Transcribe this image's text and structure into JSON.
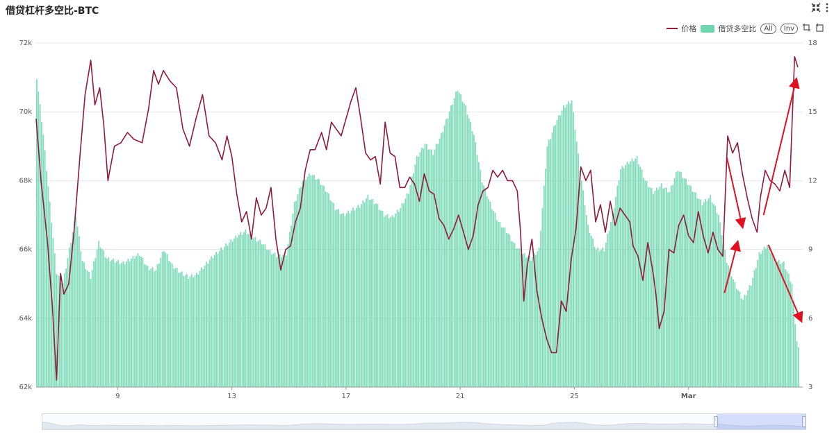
{
  "header": {
    "title": "借贷杠杆多空比-BTC"
  },
  "toolbar": {
    "fullscreen_icon": "collapse-arrows-icon",
    "more_icon": "vertical-dots-icon"
  },
  "legend": {
    "price_label": "价格",
    "ratio_label": "借贷多空比",
    "all_label": "All",
    "inv_label": "Inv",
    "price_color": "#8e1a3c",
    "ratio_color": "#6fd6b1"
  },
  "chart_data": {
    "type": "bar",
    "left_axis": {
      "min": 62000,
      "max": 72000,
      "ticks": [
        "62k",
        "64k",
        "66k",
        "68k",
        "70k",
        "72k"
      ]
    },
    "right_axis": {
      "min": 3,
      "max": 18,
      "ticks": [
        "3",
        "6",
        "9",
        "12",
        "15",
        "18"
      ]
    },
    "x_ticks": [
      "9",
      "13",
      "17",
      "21",
      "25",
      "Mar"
    ],
    "series": [
      {
        "name": "价格",
        "type": "line",
        "axis": "left",
        "color": "#8e1a3c",
        "points": [
          [
            0,
            69800
          ],
          [
            0.3,
            68000
          ],
          [
            0.7,
            66200
          ],
          [
            1.0,
            64300
          ],
          [
            1.25,
            62200
          ],
          [
            1.5,
            65300
          ],
          [
            1.7,
            64700
          ],
          [
            2.0,
            65000
          ],
          [
            2.3,
            66400
          ],
          [
            2.7,
            68800
          ],
          [
            3.0,
            70500
          ],
          [
            3.35,
            71500
          ],
          [
            3.6,
            70200
          ],
          [
            3.9,
            70700
          ],
          [
            4.15,
            69600
          ],
          [
            4.4,
            68000
          ],
          [
            4.8,
            69000
          ],
          [
            5.2,
            69100
          ],
          [
            5.6,
            69400
          ],
          [
            6.0,
            69200
          ],
          [
            6.5,
            69100
          ],
          [
            6.9,
            70100
          ],
          [
            7.2,
            71200
          ],
          [
            7.5,
            70800
          ],
          [
            7.8,
            71200
          ],
          [
            8.2,
            70900
          ],
          [
            8.6,
            70700
          ],
          [
            9.0,
            69500
          ],
          [
            9.4,
            69000
          ],
          [
            9.8,
            69800
          ],
          [
            10.2,
            70500
          ],
          [
            10.6,
            69300
          ],
          [
            11.0,
            69100
          ],
          [
            11.4,
            68600
          ],
          [
            11.7,
            69300
          ],
          [
            12.0,
            68700
          ],
          [
            12.3,
            67600
          ],
          [
            12.6,
            66800
          ],
          [
            12.9,
            67100
          ],
          [
            13.2,
            66300
          ],
          [
            13.5,
            67500
          ],
          [
            13.8,
            67000
          ],
          [
            14.1,
            67200
          ],
          [
            14.4,
            67800
          ],
          [
            14.7,
            66300
          ],
          [
            15.0,
            65400
          ],
          [
            15.3,
            66000
          ],
          [
            15.6,
            66100
          ],
          [
            15.9,
            66800
          ],
          [
            16.2,
            67200
          ],
          [
            16.5,
            68300
          ],
          [
            16.8,
            68900
          ],
          [
            17.1,
            68900
          ],
          [
            17.5,
            69400
          ],
          [
            17.8,
            68900
          ],
          [
            18.1,
            69700
          ],
          [
            18.4,
            69500
          ],
          [
            18.7,
            69300
          ],
          [
            19.0,
            69800
          ],
          [
            19.3,
            70300
          ],
          [
            19.6,
            70700
          ],
          [
            19.9,
            69800
          ],
          [
            20.2,
            68800
          ],
          [
            20.5,
            68600
          ],
          [
            20.8,
            68700
          ],
          [
            21.1,
            67900
          ],
          [
            21.4,
            69700
          ],
          [
            21.7,
            68800
          ],
          [
            22.0,
            68700
          ],
          [
            22.3,
            67800
          ],
          [
            22.6,
            67800
          ],
          [
            22.9,
            68100
          ],
          [
            23.2,
            67900
          ],
          [
            23.5,
            67400
          ],
          [
            23.8,
            68200
          ],
          [
            24.1,
            67700
          ],
          [
            24.4,
            67600
          ],
          [
            24.7,
            66900
          ],
          [
            25.0,
            66700
          ],
          [
            25.3,
            66300
          ],
          [
            25.6,
            66600
          ],
          [
            25.9,
            67000
          ],
          [
            26.2,
            66500
          ],
          [
            26.5,
            66000
          ],
          [
            26.8,
            66400
          ],
          [
            27.1,
            67300
          ],
          [
            27.4,
            67700
          ],
          [
            27.7,
            67800
          ],
          [
            28.0,
            68300
          ],
          [
            28.3,
            68100
          ],
          [
            28.6,
            68300
          ],
          [
            28.9,
            68000
          ],
          [
            29.2,
            68000
          ],
          [
            29.5,
            67700
          ],
          [
            29.7,
            66500
          ],
          [
            29.9,
            64500
          ],
          [
            30.1,
            65500
          ],
          [
            30.4,
            66300
          ],
          [
            30.7,
            64800
          ],
          [
            31.0,
            64000
          ],
          [
            31.3,
            63400
          ],
          [
            31.6,
            63000
          ],
          [
            31.9,
            63000
          ],
          [
            32.2,
            64500
          ],
          [
            32.5,
            64200
          ],
          [
            32.8,
            65700
          ],
          [
            33.1,
            66600
          ],
          [
            33.4,
            68400
          ],
          [
            33.7,
            68000
          ],
          [
            34.0,
            68300
          ],
          [
            34.3,
            66800
          ],
          [
            34.6,
            67300
          ],
          [
            34.9,
            66500
          ],
          [
            35.2,
            67400
          ],
          [
            35.5,
            66700
          ],
          [
            35.8,
            67200
          ],
          [
            36.1,
            67000
          ],
          [
            36.4,
            66800
          ],
          [
            36.6,
            66100
          ],
          [
            36.9,
            65800
          ],
          [
            37.2,
            65100
          ],
          [
            37.5,
            66200
          ],
          [
            37.8,
            65400
          ],
          [
            38.0,
            64700
          ],
          [
            38.2,
            63700
          ],
          [
            38.5,
            64200
          ],
          [
            38.8,
            66000
          ],
          [
            39.1,
            65900
          ],
          [
            39.4,
            66700
          ],
          [
            39.7,
            67000
          ],
          [
            40.0,
            66400
          ],
          [
            40.3,
            66200
          ],
          [
            40.6,
            67100
          ],
          [
            40.9,
            66400
          ],
          [
            41.2,
            65900
          ],
          [
            41.5,
            66500
          ],
          [
            41.8,
            66000
          ],
          [
            42.1,
            65800
          ],
          [
            42.4,
            69300
          ],
          [
            42.7,
            68800
          ],
          [
            43.0,
            69100
          ],
          [
            43.3,
            68200
          ],
          [
            43.6,
            67500
          ],
          [
            43.9,
            66900
          ],
          [
            44.2,
            66500
          ],
          [
            44.4,
            67500
          ],
          [
            44.7,
            68300
          ],
          [
            45.0,
            68000
          ],
          [
            45.3,
            67900
          ],
          [
            45.6,
            67700
          ],
          [
            45.9,
            68300
          ],
          [
            46.2,
            67800
          ],
          [
            46.5,
            71600
          ],
          [
            46.7,
            71300
          ]
        ]
      },
      {
        "name": "借贷多空比",
        "type": "bar",
        "axis": "right",
        "color": "#6fd6b1",
        "points": [
          [
            0,
            16.5
          ],
          [
            0.4,
            14.0
          ],
          [
            0.8,
            11.0
          ],
          [
            1.2,
            8.0
          ],
          [
            1.6,
            7.5
          ],
          [
            2.0,
            9.0
          ],
          [
            2.4,
            10.5
          ],
          [
            2.8,
            8.5
          ],
          [
            3.3,
            7.8
          ],
          [
            3.8,
            9.3
          ],
          [
            4.3,
            8.6
          ],
          [
            4.8,
            8.5
          ],
          [
            5.3,
            8.4
          ],
          [
            5.8,
            8.6
          ],
          [
            6.3,
            8.8
          ],
          [
            6.8,
            8.2
          ],
          [
            7.3,
            8.1
          ],
          [
            7.8,
            9.0
          ],
          [
            8.3,
            8.3
          ],
          [
            8.8,
            8.0
          ],
          [
            9.3,
            7.8
          ],
          [
            9.8,
            7.9
          ],
          [
            10.3,
            8.3
          ],
          [
            10.8,
            8.7
          ],
          [
            11.3,
            9.0
          ],
          [
            11.8,
            9.3
          ],
          [
            12.3,
            9.6
          ],
          [
            12.8,
            9.8
          ],
          [
            13.3,
            9.5
          ],
          [
            13.8,
            9.3
          ],
          [
            14.3,
            8.9
          ],
          [
            14.8,
            8.7
          ],
          [
            15.3,
            8.8
          ],
          [
            15.8,
            11.0
          ],
          [
            16.3,
            12.0
          ],
          [
            16.8,
            12.3
          ],
          [
            17.3,
            12.0
          ],
          [
            17.8,
            11.5
          ],
          [
            18.3,
            10.8
          ],
          [
            18.8,
            10.5
          ],
          [
            19.3,
            10.7
          ],
          [
            19.8,
            10.9
          ],
          [
            20.3,
            11.3
          ],
          [
            20.8,
            11.0
          ],
          [
            21.3,
            10.5
          ],
          [
            21.8,
            10.4
          ],
          [
            22.3,
            10.8
          ],
          [
            22.8,
            11.5
          ],
          [
            23.3,
            13.0
          ],
          [
            23.8,
            13.6
          ],
          [
            24.3,
            13.2
          ],
          [
            24.8,
            14.0
          ],
          [
            25.3,
            15.0
          ],
          [
            25.8,
            16.0
          ],
          [
            26.3,
            15.2
          ],
          [
            26.8,
            14.0
          ],
          [
            27.3,
            12.0
          ],
          [
            27.8,
            11.0
          ],
          [
            28.3,
            10.2
          ],
          [
            28.8,
            9.8
          ],
          [
            29.3,
            9.2
          ],
          [
            29.8,
            8.8
          ],
          [
            30.3,
            8.6
          ],
          [
            30.8,
            9.0
          ],
          [
            31.3,
            13.5
          ],
          [
            31.8,
            14.5
          ],
          [
            32.3,
            15.2
          ],
          [
            32.8,
            15.5
          ],
          [
            33.3,
            12.5
          ],
          [
            33.8,
            10.0
          ],
          [
            34.3,
            9.0
          ],
          [
            34.8,
            9.0
          ],
          [
            35.3,
            10.5
          ],
          [
            35.8,
            12.5
          ],
          [
            36.3,
            12.8
          ],
          [
            36.8,
            13.0
          ],
          [
            37.3,
            12.0
          ],
          [
            37.8,
            11.5
          ],
          [
            38.3,
            11.8
          ],
          [
            38.8,
            11.5
          ],
          [
            39.3,
            12.5
          ],
          [
            39.8,
            12.0
          ],
          [
            40.3,
            11.5
          ],
          [
            40.8,
            11.0
          ],
          [
            41.3,
            11.3
          ],
          [
            41.8,
            10.5
          ],
          [
            42.3,
            8.5
          ],
          [
            42.8,
            7.5
          ],
          [
            43.3,
            6.8
          ],
          [
            43.8,
            7.5
          ],
          [
            44.3,
            8.8
          ],
          [
            44.8,
            9.2
          ],
          [
            45.3,
            8.5
          ],
          [
            45.8,
            8.4
          ],
          [
            46.3,
            7.5
          ],
          [
            46.6,
            5.0
          ],
          [
            46.8,
            4.3
          ]
        ]
      }
    ],
    "x_domain": [
      0,
      47
    ],
    "x_tick_positions": [
      5,
      12,
      19,
      26,
      33,
      40
    ],
    "annotations": [
      {
        "from": [
          42.35,
          13.0
        ],
        "to": [
          43.3,
          10.0
        ],
        "color": "#e01020"
      },
      {
        "from": [
          42.2,
          7.1
        ],
        "to": [
          43.0,
          9.3
        ],
        "color": "#e01020"
      },
      {
        "from": [
          44.6,
          10.5
        ],
        "to": [
          46.6,
          16.4
        ],
        "color": "#e01020"
      },
      {
        "from": [
          44.9,
          9.2
        ],
        "to": [
          46.9,
          5.9
        ],
        "color": "#e01020"
      }
    ]
  }
}
